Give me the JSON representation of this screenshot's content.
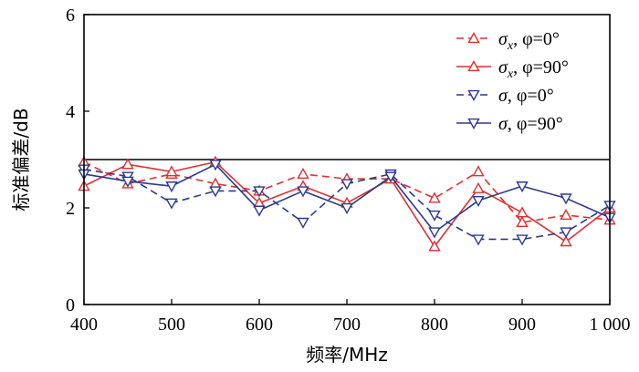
{
  "chart_data": {
    "type": "line",
    "title": "",
    "xlabel": "频率/MHz",
    "ylabel": "标准偏差/dB",
    "xlim": [
      400,
      1000
    ],
    "ylim": [
      0,
      6
    ],
    "xticks": [
      400,
      500,
      600,
      700,
      800,
      900,
      1000
    ],
    "xtick_labels": [
      "400",
      "500",
      "600",
      "700",
      "800",
      "900",
      "1 000"
    ],
    "yticks": [
      0,
      2,
      4,
      6
    ],
    "ytick_labels": [
      "0",
      "2",
      "4",
      "6"
    ],
    "reference_line": {
      "y": 3
    },
    "legend_position": "top-right",
    "x": [
      400,
      450,
      500,
      550,
      600,
      650,
      700,
      750,
      800,
      850,
      900,
      950,
      1000
    ],
    "series": [
      {
        "name": "σx, φ=0°",
        "legend_symbol": "σ",
        "legend_subscript": "x",
        "legend_suffix": ", φ=0°",
        "color": "#e03030",
        "dash": "dashed",
        "marker": "triangle-up",
        "values": [
          2.95,
          2.5,
          2.7,
          2.5,
          2.35,
          2.7,
          2.6,
          2.6,
          2.2,
          2.75,
          1.7,
          1.85,
          1.75
        ]
      },
      {
        "name": "σx, φ=90°",
        "legend_symbol": "σ",
        "legend_subscript": "x",
        "legend_suffix": ", φ=90°",
        "color": "#e03030",
        "dash": "solid",
        "marker": "triangle-up",
        "values": [
          2.45,
          2.9,
          2.75,
          2.95,
          2.1,
          2.45,
          2.1,
          2.6,
          1.2,
          2.4,
          1.9,
          1.3,
          2.0
        ]
      },
      {
        "name": "σ, φ=0°",
        "legend_symbol": "σ",
        "legend_subscript": "",
        "legend_suffix": ", φ=0°",
        "color": "#2a3a8e",
        "dash": "dashed",
        "marker": "triangle-down",
        "values": [
          2.8,
          2.65,
          2.1,
          2.35,
          2.35,
          1.7,
          2.5,
          2.7,
          1.85,
          1.35,
          1.35,
          1.5,
          2.05
        ]
      },
      {
        "name": "σ, φ=90°",
        "legend_symbol": "σ",
        "legend_subscript": "",
        "legend_suffix": ", φ=90°",
        "color": "#2a3a8e",
        "dash": "solid",
        "marker": "triangle-down",
        "values": [
          2.7,
          2.55,
          2.45,
          2.9,
          1.95,
          2.35,
          2.0,
          2.65,
          1.5,
          2.15,
          2.45,
          2.2,
          1.8
        ]
      }
    ]
  }
}
